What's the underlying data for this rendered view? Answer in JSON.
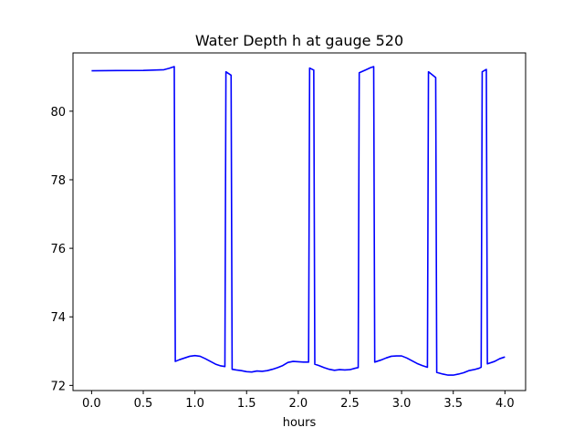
{
  "chart_data": {
    "type": "line",
    "title": "Water Depth h at gauge 520",
    "xlabel": "hours",
    "ylabel": "",
    "xlim": [
      -0.18,
      4.2
    ],
    "ylim": [
      71.85,
      81.7
    ],
    "xticks": [
      0.0,
      0.5,
      1.0,
      1.5,
      2.0,
      2.5,
      3.0,
      3.5,
      4.0
    ],
    "xtick_labels": [
      "0.0",
      "0.5",
      "1.0",
      "1.5",
      "2.0",
      "2.5",
      "3.0",
      "3.5",
      "4.0"
    ],
    "yticks": [
      72,
      74,
      76,
      78,
      80
    ],
    "ytick_labels": [
      "72",
      "74",
      "76",
      "78",
      "80"
    ],
    "grid": false,
    "series": [
      {
        "color": "#0000ff",
        "x": [
          0.0,
          0.5,
          0.7,
          0.75,
          0.8,
          0.81,
          0.85,
          0.9,
          0.95,
          1.0,
          1.05,
          1.1,
          1.15,
          1.2,
          1.25,
          1.29,
          1.3,
          1.35,
          1.36,
          1.4,
          1.45,
          1.5,
          1.55,
          1.6,
          1.65,
          1.7,
          1.75,
          1.8,
          1.85,
          1.9,
          1.95,
          2.0,
          2.05,
          2.1,
          2.11,
          2.15,
          2.16,
          2.2,
          2.25,
          2.3,
          2.35,
          2.4,
          2.45,
          2.5,
          2.55,
          2.58,
          2.59,
          2.65,
          2.7,
          2.73,
          2.74,
          2.8,
          2.85,
          2.9,
          2.95,
          3.0,
          3.05,
          3.1,
          3.15,
          3.2,
          3.25,
          3.26,
          3.33,
          3.34,
          3.4,
          3.45,
          3.5,
          3.55,
          3.6,
          3.65,
          3.7,
          3.75,
          3.77,
          3.78,
          3.82,
          3.83,
          3.9,
          3.95,
          4.0
        ],
        "y": [
          81.18,
          81.19,
          81.21,
          81.25,
          81.3,
          72.7,
          72.75,
          72.8,
          72.85,
          72.87,
          72.85,
          72.78,
          72.7,
          72.62,
          72.57,
          72.55,
          81.15,
          81.05,
          72.47,
          72.45,
          72.43,
          72.4,
          72.39,
          72.42,
          72.41,
          72.43,
          72.47,
          72.52,
          72.58,
          72.67,
          72.7,
          72.69,
          72.68,
          72.68,
          81.26,
          81.2,
          72.62,
          72.58,
          72.52,
          72.47,
          72.44,
          72.46,
          72.45,
          72.46,
          72.5,
          72.52,
          81.12,
          81.2,
          81.27,
          81.3,
          72.68,
          72.74,
          72.8,
          72.85,
          72.86,
          72.86,
          72.8,
          72.72,
          72.64,
          72.58,
          72.53,
          81.15,
          80.98,
          72.38,
          72.33,
          72.3,
          72.3,
          72.33,
          72.37,
          72.43,
          72.46,
          72.5,
          72.53,
          81.15,
          81.22,
          72.63,
          72.7,
          72.78,
          72.83
        ]
      }
    ]
  }
}
